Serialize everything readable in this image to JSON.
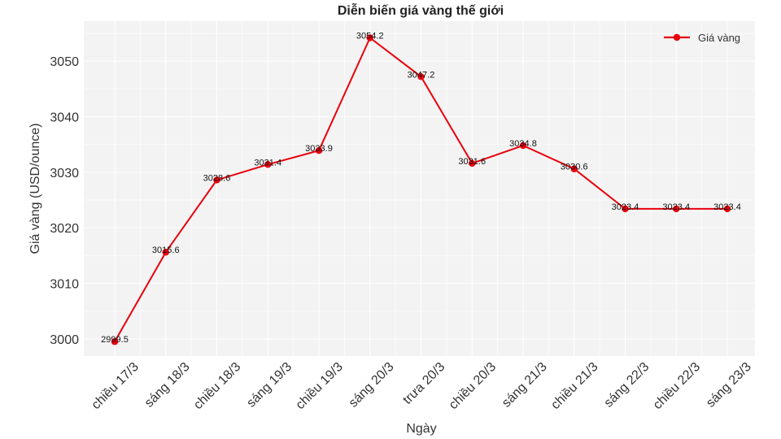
{
  "chart_data": {
    "type": "line",
    "title": "Diễn biến giá vàng thế giới",
    "xlabel": "Ngày",
    "ylabel": "Giá vàng (USD/ounce)",
    "categories": [
      "chiều 17/3",
      "sáng 18/3",
      "chiều 18/3",
      "sáng 19/3",
      "chiều 19/3",
      "sáng 20/3",
      "trưa 20/3",
      "chiều 20/3",
      "sáng 21/3",
      "chiều 21/3",
      "sáng 22/3",
      "chiều 22/3",
      "sáng 23/3"
    ],
    "series": [
      {
        "name": "Giá vàng",
        "color": "#e8000b",
        "values": [
          2999.5,
          3015.6,
          3028.6,
          3031.4,
          3033.9,
          3054.2,
          3047.2,
          3031.6,
          3034.8,
          3030.6,
          3023.4,
          3023.4,
          3023.4
        ]
      }
    ],
    "data_labels": [
      "2999.5",
      "3015.6",
      "3028.6",
      "3031.4",
      "3033.9",
      "3054.2",
      "3047.2",
      "3031.6",
      "3034.8",
      "3030.6",
      "3023.4",
      "3023.4",
      "3023.4"
    ],
    "yticks": [
      3000,
      3010,
      3020,
      3030,
      3040,
      3050
    ],
    "ylim": [
      2996.9,
      3057.2
    ],
    "grid": true,
    "legend_position": "upper right",
    "x_tick_rotation": 45
  },
  "colors": {
    "background": "#ffffff",
    "plot_background": "#f3f3f3",
    "grid": "#ffffff",
    "line": "#e8000b"
  }
}
